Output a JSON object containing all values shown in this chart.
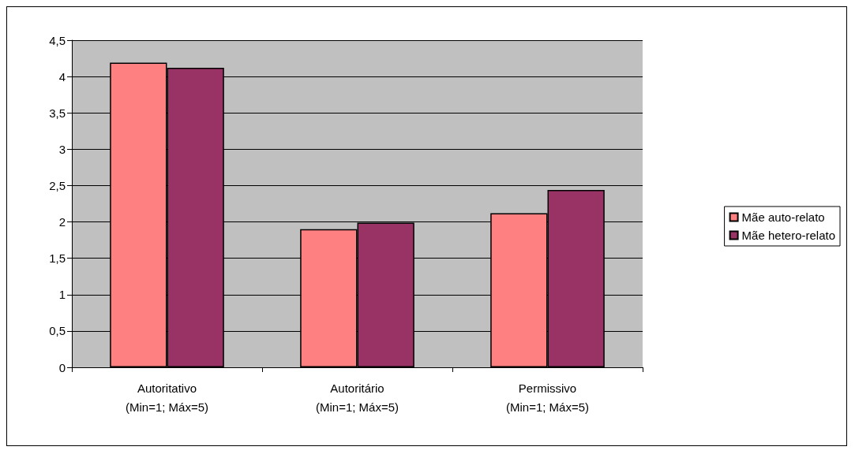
{
  "chart_data": {
    "type": "bar",
    "categories": [
      "Autoritativo\n(Min=1; Máx=5)",
      "Autoritário\n(Min=1; Máx=5)",
      "Permissivo\n(Min=1; Máx=5)"
    ],
    "series": [
      {
        "name": "Mãe auto-relato",
        "color": "#ff8080",
        "values": [
          4.19,
          1.9,
          2.12
        ]
      },
      {
        "name": "Mãe hetero-relato",
        "color": "#993366",
        "values": [
          4.12,
          1.99,
          2.44
        ]
      }
    ],
    "ylim": [
      0,
      4.5
    ],
    "yticks": [
      {
        "value": 0,
        "label": "0"
      },
      {
        "value": 0.5,
        "label": "0,5"
      },
      {
        "value": 1,
        "label": "1"
      },
      {
        "value": 1.5,
        "label": "1,5"
      },
      {
        "value": 2,
        "label": "2"
      },
      {
        "value": 2.5,
        "label": "2,5"
      },
      {
        "value": 3,
        "label": "3"
      },
      {
        "value": 3.5,
        "label": "3,5"
      },
      {
        "value": 4,
        "label": "4"
      },
      {
        "value": 4.5,
        "label": "4,5"
      }
    ],
    "grid": "y",
    "legend": "right"
  }
}
